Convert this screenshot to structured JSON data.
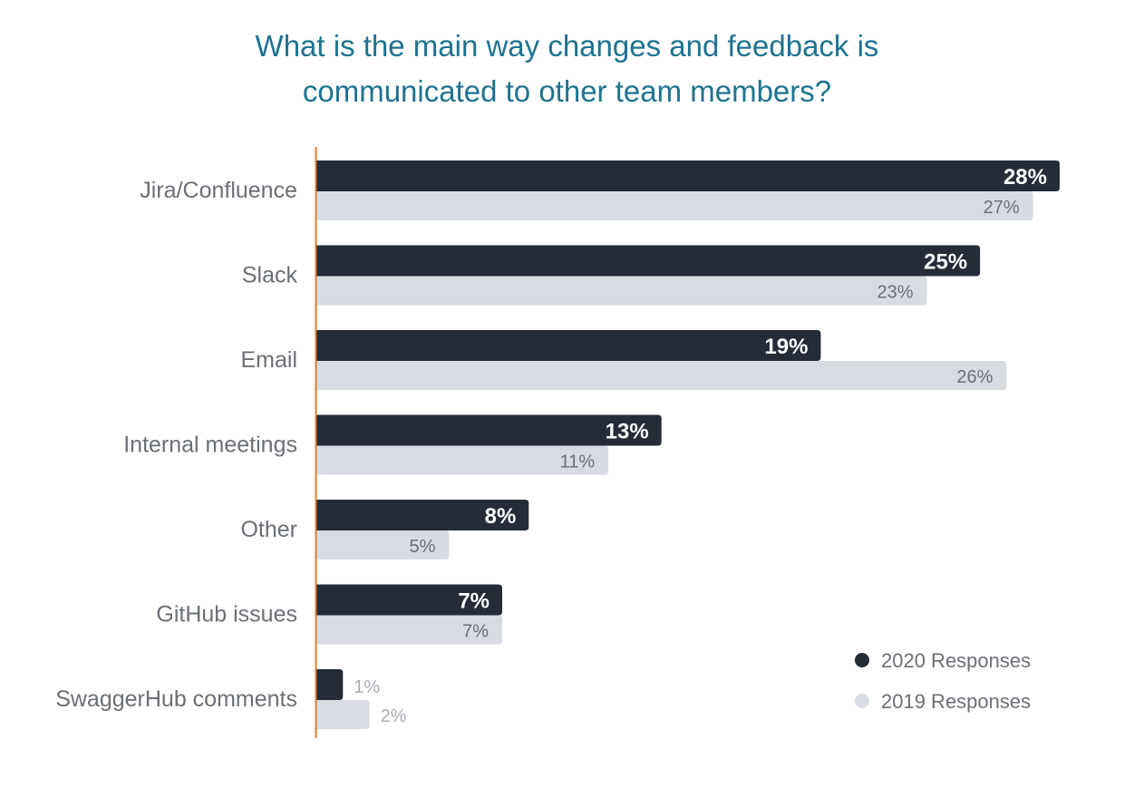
{
  "chart_data": {
    "type": "bar",
    "orientation": "horizontal",
    "title_lines": [
      "What is the main way changes and feedback is",
      "communicated to other team members?"
    ],
    "categories": [
      "Jira/Confluence",
      "Slack",
      "Email",
      "Internal meetings",
      "Other",
      "GitHub issues",
      "SwaggerHub comments"
    ],
    "series": [
      {
        "name": "2020 Responses",
        "color": "#252b37",
        "values": [
          28,
          25,
          19,
          13,
          8,
          7,
          1
        ],
        "labels": [
          "28%",
          "25%",
          "19%",
          "13%",
          "8%",
          "7%",
          "1%"
        ]
      },
      {
        "name": "2019 Responses",
        "color": "#d8dbe2",
        "values": [
          27,
          23,
          26,
          11,
          5,
          7,
          2
        ],
        "labels": [
          "27%",
          "23%",
          "26%",
          "11%",
          "5%",
          "7%",
          "2%"
        ]
      }
    ],
    "xlim": [
      0,
      28
    ],
    "axis_line_color": "#e07b2c",
    "grid": false,
    "legend_position": "bottom-right"
  }
}
